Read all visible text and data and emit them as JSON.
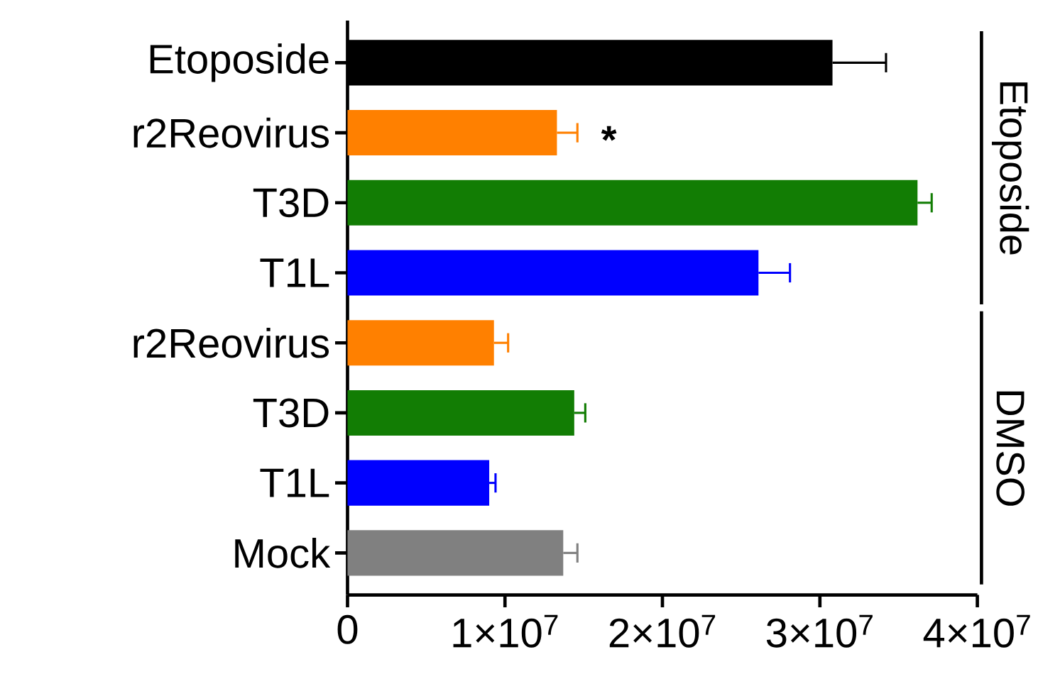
{
  "chart_data": {
    "type": "bar",
    "orientation": "horizontal",
    "categories": [
      "Etoposide",
      "r2Reovirus",
      "T3D",
      "T1L",
      "r2Reovirus",
      "T3D",
      "T1L",
      "Mock"
    ],
    "values": [
      30800000,
      13300000,
      36200000,
      26100000,
      9300000,
      14400000,
      9000000,
      13700000
    ],
    "errors": [
      3400000,
      1300000,
      900000,
      2000000,
      900000,
      700000,
      400000,
      900000
    ],
    "colors": [
      "#000000",
      "#ff8000",
      "#127d04",
      "#0000ff",
      "#ff8000",
      "#127d04",
      "#0000ff",
      "#808080"
    ],
    "xlim": [
      0,
      40000000
    ],
    "xticks": [
      0,
      {
        "value": 10000000,
        "label": "1×10$^{7}$"
      },
      {
        "value": 20000000,
        "label": "2×10$^{7}$"
      },
      {
        "value": 30000000,
        "label": "3×10$^{7}$"
      },
      {
        "value": 40000000,
        "label": "4×10$^{7}$"
      }
    ],
    "annotations": [
      "*",
      "Etoposide",
      "DMSO"
    ],
    "grid": false
  }
}
